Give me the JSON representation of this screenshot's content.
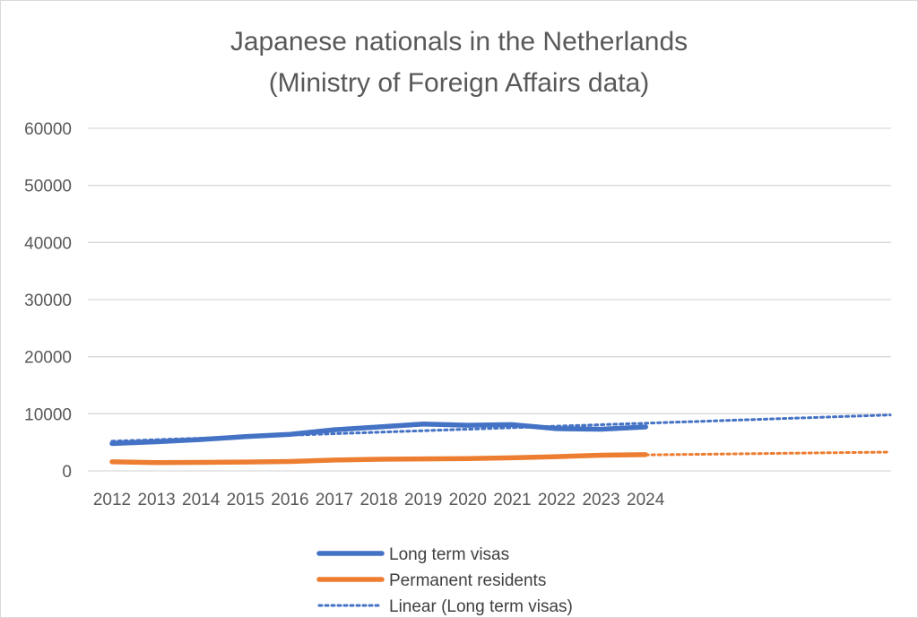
{
  "chart_data": {
    "type": "line",
    "title_line1": "Japanese nationals in the Netherlands",
    "title_line2": "(Ministry  of Foreign Affairs data)",
    "xlabel": "",
    "ylabel": "",
    "ylim": [
      0,
      60000
    ],
    "y_ticks": [
      "60000",
      "50000",
      "40000",
      "30000",
      "20000",
      "10000",
      "0"
    ],
    "categories": [
      "2012",
      "2013",
      "2014",
      "2015",
      "2016",
      "2017",
      "2018",
      "2019",
      "2020",
      "2021",
      "2022",
      "2023",
      "2024"
    ],
    "grid": true,
    "legend_position": "bottom",
    "series": [
      {
        "name": "Long term visas",
        "color": "#4472c4",
        "values": [
          4800,
          5100,
          5500,
          6000,
          6400,
          7200,
          7700,
          8200,
          8000,
          8100,
          7400,
          7300,
          7700
        ]
      },
      {
        "name": "Permanent residents",
        "color": "#ed7d31",
        "values": [
          1600,
          1450,
          1500,
          1550,
          1650,
          1900,
          2050,
          2100,
          2150,
          2300,
          2500,
          2750,
          2850
        ]
      }
    ],
    "trendlines": [
      {
        "name": "Linear (Long term visas)",
        "color": "#4472c4",
        "show_in_legend": true,
        "x_range": [
          2012,
          2029.5
        ],
        "y_range": [
          5200,
          9800
        ]
      },
      {
        "name": "",
        "color": "#ed7d31",
        "show_in_legend": false,
        "x_range": [
          2024,
          2029.5
        ],
        "y_range": [
          2800,
          3300
        ]
      }
    ]
  }
}
